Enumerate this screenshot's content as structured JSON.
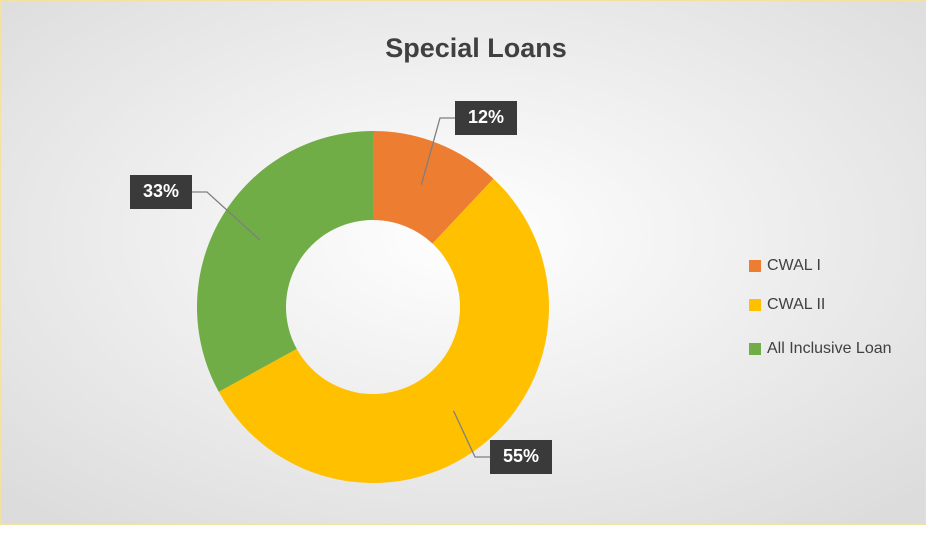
{
  "chart_data": {
    "type": "donut",
    "title": "Special Loans",
    "categories": [
      "CWAL I",
      "CWAL II",
      "All Inclusive Loan"
    ],
    "values": [
      12,
      55,
      33
    ],
    "value_labels": [
      "12%",
      "55%",
      "33%"
    ],
    "colors": [
      "#ed7d31",
      "#ffc000",
      "#70ad47"
    ],
    "legend": "right"
  }
}
